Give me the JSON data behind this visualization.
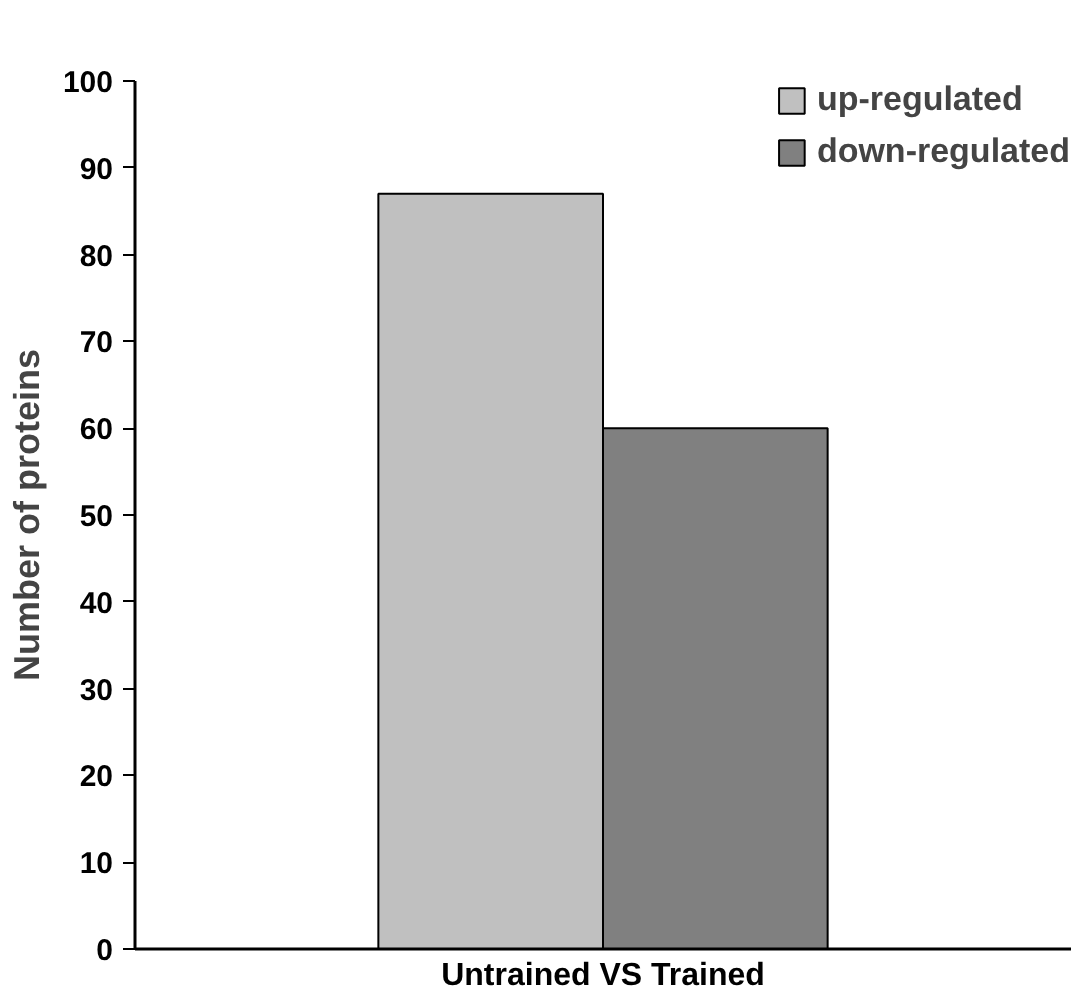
{
  "chart_data": {
    "type": "bar",
    "ylabel": "Number of proteins",
    "categories": [
      "Untrained VS Trained"
    ],
    "series": [
      {
        "name": "up-regulated",
        "color": "#c0c0c0",
        "values": [
          87
        ]
      },
      {
        "name": "down-regulated",
        "color": "#808080",
        "values": [
          60
        ]
      }
    ],
    "ylim": [
      0,
      100
    ],
    "yticks": [
      0,
      10,
      20,
      30,
      40,
      50,
      60,
      70,
      80,
      90,
      100
    ],
    "grid": false,
    "legend": "top right"
  }
}
